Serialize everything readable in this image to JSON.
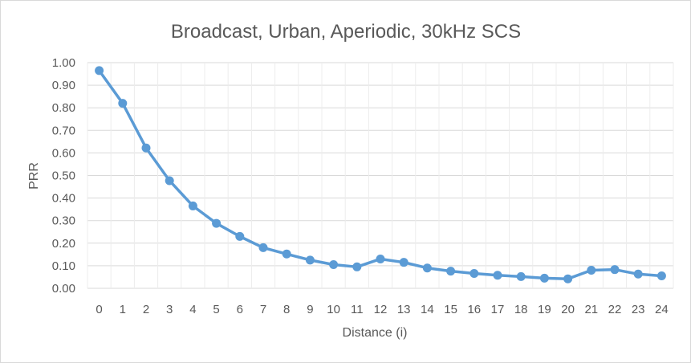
{
  "chart_data": {
    "type": "line",
    "title": "Broadcast, Urban, Aperiodic, 30kHz SCS",
    "xlabel": "Distance (i)",
    "ylabel": "PRR",
    "x": [
      "0",
      "1",
      "2",
      "3",
      "4",
      "5",
      "6",
      "7",
      "8",
      "9",
      "10",
      "11",
      "12",
      "13",
      "14",
      "15",
      "16",
      "17",
      "18",
      "19",
      "20",
      "21",
      "22",
      "23",
      "24"
    ],
    "yticks": [
      "0.00",
      "0.10",
      "0.20",
      "0.30",
      "0.40",
      "0.50",
      "0.60",
      "0.70",
      "0.80",
      "0.90",
      "1.00"
    ],
    "ylim": [
      0,
      1.0
    ],
    "grid": true,
    "legend": "none",
    "series": [
      {
        "color": "#5b9bd5",
        "values": [
          0.965,
          0.82,
          0.622,
          0.477,
          0.365,
          0.288,
          0.23,
          0.18,
          0.152,
          0.125,
          0.105,
          0.095,
          0.13,
          0.115,
          0.09,
          0.076,
          0.066,
          0.058,
          0.052,
          0.045,
          0.042,
          0.08,
          0.083,
          0.063,
          0.055
        ]
      }
    ]
  }
}
